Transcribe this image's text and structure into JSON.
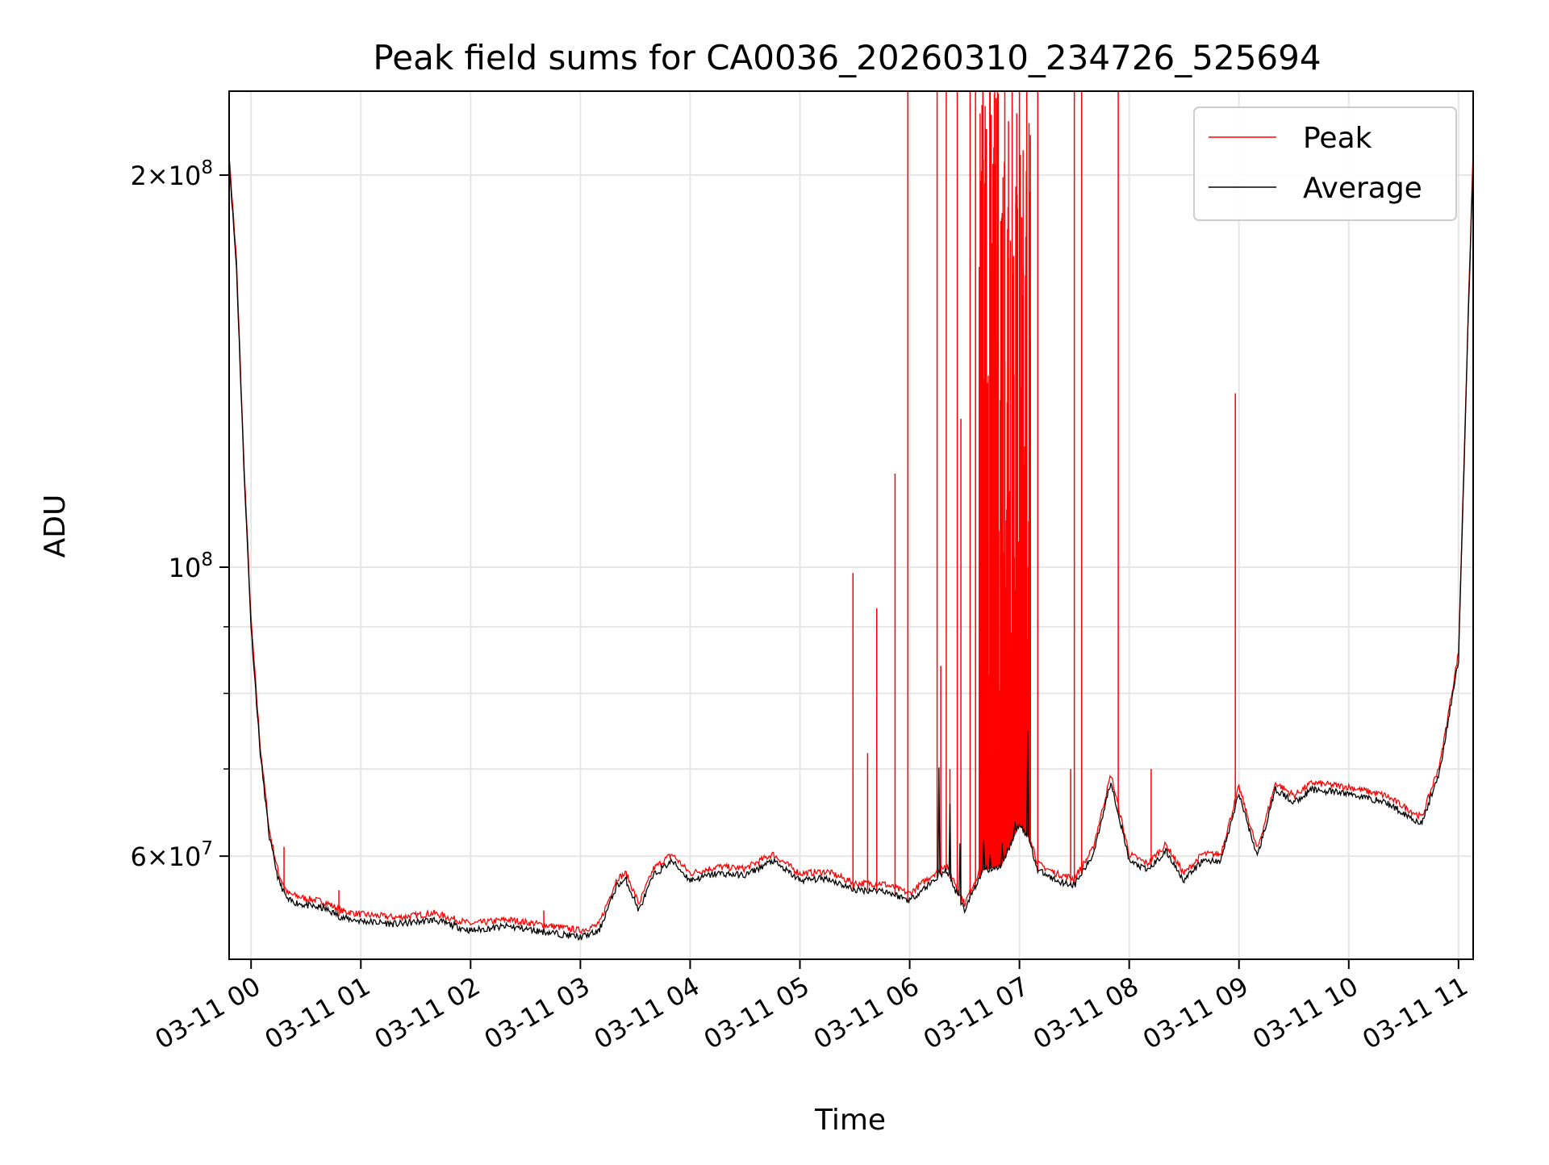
{
  "chart_data": {
    "type": "line",
    "title": "Peak field sums for CA0036_20260310_234726_525694",
    "xlabel": "Time",
    "ylabel": "ADU",
    "yscale": "log",
    "ylim": [
      50000000,
      232000000
    ],
    "xlim": [
      "03-10 23:48",
      "03-11 11:08"
    ],
    "grid": true,
    "legend_position": "upper-right",
    "x_ticks": [
      "03-11 00",
      "03-11 01",
      "03-11 02",
      "03-11 03",
      "03-11 04",
      "03-11 05",
      "03-11 06",
      "03-11 07",
      "03-11 08",
      "03-11 09",
      "03-11 10",
      "03-11 11"
    ],
    "y_ticks": [
      {
        "value": 200000000,
        "base": "2×10",
        "exp": "8"
      },
      {
        "value": 100000000,
        "base": "10",
        "exp": "8"
      },
      {
        "value": 60000000,
        "base": "6×10",
        "exp": "7"
      }
    ],
    "y_minor_ticks": [
      70000000,
      80000000,
      90000000
    ],
    "series": [
      {
        "name": "Average",
        "color": "#000000",
        "points": [
          [
            "03-10 23:48",
            205000000
          ],
          [
            "03-10 23:52",
            170000000
          ],
          [
            "03-10 23:56",
            120000000
          ],
          [
            "03-11 00:00",
            90000000
          ],
          [
            "03-11 00:05",
            72000000
          ],
          [
            "03-11 00:10",
            62000000
          ],
          [
            "03-11 00:15",
            57500000
          ],
          [
            "03-11 00:20",
            55500000
          ],
          [
            "03-11 00:30",
            55000000
          ],
          [
            "03-11 00:40",
            54700000
          ],
          [
            "03-11 00:50",
            53800000
          ],
          [
            "03-11 01:00",
            53500000
          ],
          [
            "03-11 01:20",
            53200000
          ],
          [
            "03-11 01:40",
            53600000
          ],
          [
            "03-11 02:00",
            52600000
          ],
          [
            "03-11 02:20",
            53000000
          ],
          [
            "03-11 02:40",
            52500000
          ],
          [
            "03-11 03:00",
            52000000
          ],
          [
            "03-11 03:10",
            52500000
          ],
          [
            "03-11 03:20",
            57000000
          ],
          [
            "03-11 03:25",
            57500000
          ],
          [
            "03-11 03:32",
            54500000
          ],
          [
            "03-11 03:40",
            58000000
          ],
          [
            "03-11 03:50",
            59500000
          ],
          [
            "03-11 04:00",
            57500000
          ],
          [
            "03-11 04:15",
            58200000
          ],
          [
            "03-11 04:30",
            58000000
          ],
          [
            "03-11 04:45",
            59500000
          ],
          [
            "03-11 05:00",
            57500000
          ],
          [
            "03-11 05:15",
            57700000
          ],
          [
            "03-11 05:30",
            56500000
          ],
          [
            "03-11 05:45",
            56500000
          ],
          [
            "03-11 06:00",
            55500000
          ],
          [
            "03-11 06:10",
            57000000
          ],
          [
            "03-11 06:20",
            58500000
          ],
          [
            "03-11 06:30",
            54500000
          ],
          [
            "03-11 06:35",
            56500000
          ],
          [
            "03-11 06:40",
            58500000
          ],
          [
            "03-11 06:50",
            59000000
          ],
          [
            "03-11 07:00",
            63500000
          ],
          [
            "03-11 07:05",
            62000000
          ],
          [
            "03-11 07:10",
            58500000
          ],
          [
            "03-11 07:20",
            57500000
          ],
          [
            "03-11 07:30",
            57000000
          ],
          [
            "03-11 07:40",
            60000000
          ],
          [
            "03-11 07:50",
            68500000
          ],
          [
            "03-11 08:00",
            59500000
          ],
          [
            "03-11 08:10",
            58500000
          ],
          [
            "03-11 08:20",
            60500000
          ],
          [
            "03-11 08:30",
            57500000
          ],
          [
            "03-11 08:40",
            59500000
          ],
          [
            "03-11 08:50",
            59500000
          ],
          [
            "03-11 09:00",
            67000000
          ],
          [
            "03-11 09:10",
            60000000
          ],
          [
            "03-11 09:20",
            67500000
          ],
          [
            "03-11 09:30",
            66000000
          ],
          [
            "03-11 09:40",
            67500000
          ],
          [
            "03-11 10:00",
            67000000
          ],
          [
            "03-11 10:20",
            66000000
          ],
          [
            "03-11 10:40",
            63500000
          ],
          [
            "03-11 10:50",
            70000000
          ],
          [
            "03-11 11:00",
            85000000
          ],
          [
            "03-11 11:05",
            150000000
          ],
          [
            "03-11 11:08",
            207000000
          ]
        ]
      },
      {
        "name": "Peak",
        "color": "#ff0000",
        "note_spikes_in": "03-11 06:40 to 03-11 07:05 dense high values",
        "spikes": [
          [
            "03-11 00:18",
            61000000
          ],
          [
            "03-11 00:48",
            56500000
          ],
          [
            "03-11 02:40",
            54500000
          ],
          [
            "03-11 05:29",
            99000000
          ],
          [
            "03-11 05:37",
            72000000
          ],
          [
            "03-11 05:42",
            93000000
          ],
          [
            "03-11 05:52",
            118000000
          ],
          [
            "03-11 05:59",
            232000000
          ],
          [
            "03-11 06:15",
            232000000
          ],
          [
            "03-11 06:17",
            84000000
          ],
          [
            "03-11 06:20",
            232000000
          ],
          [
            "03-11 06:22",
            70000000
          ],
          [
            "03-11 06:26",
            232000000
          ],
          [
            "03-11 06:28",
            130000000
          ],
          [
            "03-11 06:33",
            232000000
          ],
          [
            "03-11 06:36",
            232000000
          ],
          [
            "03-11 06:40",
            232000000
          ],
          [
            "03-11 06:42",
            200000000
          ],
          [
            "03-11 06:44",
            232000000
          ],
          [
            "03-11 06:46",
            210000000
          ],
          [
            "03-11 06:48",
            232000000
          ],
          [
            "03-11 06:50",
            180000000
          ],
          [
            "03-11 06:52",
            232000000
          ],
          [
            "03-11 06:54",
            220000000
          ],
          [
            "03-11 06:56",
            232000000
          ],
          [
            "03-11 06:58",
            190000000
          ],
          [
            "03-11 07:00",
            232000000
          ],
          [
            "03-11 07:02",
            170000000
          ],
          [
            "03-11 07:04",
            232000000
          ],
          [
            "03-11 07:06",
            150000000
          ],
          [
            "03-11 07:10",
            232000000
          ],
          [
            "03-11 07:28",
            70000000
          ],
          [
            "03-11 07:30",
            232000000
          ],
          [
            "03-11 07:34",
            232000000
          ],
          [
            "03-11 07:54",
            232000000
          ],
          [
            "03-11 08:12",
            70000000
          ],
          [
            "03-11 08:58",
            136000000
          ]
        ]
      }
    ]
  }
}
